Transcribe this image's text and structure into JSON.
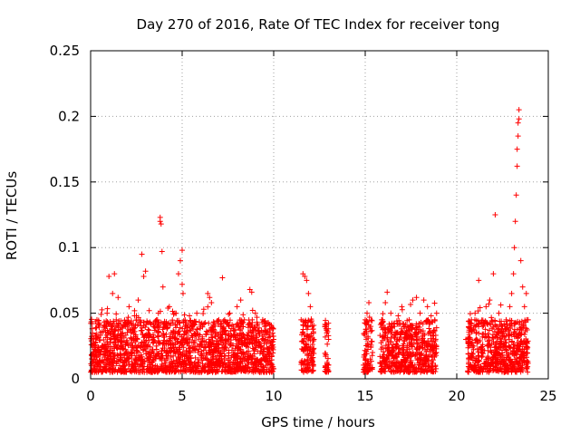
{
  "chart_data": {
    "type": "scatter",
    "title": "Day 270 of 2016, Rate Of TEC Index for receiver tong",
    "xlabel": "GPS time / hours",
    "ylabel": "ROTI / TECUs",
    "xlim": [
      0,
      25
    ],
    "ylim": [
      0,
      0.25
    ],
    "xticks": [
      0,
      5,
      10,
      15,
      20,
      25
    ],
    "xtick_labels": [
      "0",
      "5",
      "10",
      "15",
      "20",
      "25"
    ],
    "yticks": [
      0,
      0.05,
      0.1,
      0.15,
      0.2,
      0.25
    ],
    "ytick_labels": [
      "0",
      "0.05",
      "0.1",
      "0.15",
      "0.2",
      "0.25"
    ],
    "grid": true,
    "marker": "+",
    "marker_color": "#ff0000",
    "series": [
      {
        "name": "ROTI",
        "points": [
          [
            0.1,
            0.035
          ],
          [
            0.3,
            0.02
          ],
          [
            0.5,
            0.042
          ],
          [
            0.7,
            0.025
          ],
          [
            0.9,
            0.05
          ],
          [
            1.0,
            0.078
          ],
          [
            1.1,
            0.03
          ],
          [
            1.2,
            0.065
          ],
          [
            1.3,
            0.08
          ],
          [
            1.4,
            0.045
          ],
          [
            1.5,
            0.062
          ],
          [
            1.7,
            0.028
          ],
          [
            1.9,
            0.04
          ],
          [
            2.1,
            0.055
          ],
          [
            2.3,
            0.025
          ],
          [
            2.5,
            0.048
          ],
          [
            2.6,
            0.06
          ],
          [
            2.8,
            0.095
          ],
          [
            2.9,
            0.078
          ],
          [
            3.0,
            0.082
          ],
          [
            3.2,
            0.052
          ],
          [
            3.4,
            0.03
          ],
          [
            3.6,
            0.045
          ],
          [
            3.7,
            0.05
          ],
          [
            3.8,
            0.12
          ],
          [
            3.8,
            0.123
          ],
          [
            3.85,
            0.118
          ],
          [
            3.9,
            0.097
          ],
          [
            3.95,
            0.07
          ],
          [
            4.1,
            0.04
          ],
          [
            4.3,
            0.055
          ],
          [
            4.5,
            0.035
          ],
          [
            4.6,
            0.05
          ],
          [
            4.8,
            0.08
          ],
          [
            4.9,
            0.09
          ],
          [
            5.0,
            0.098
          ],
          [
            5.0,
            0.072
          ],
          [
            5.05,
            0.065
          ],
          [
            5.2,
            0.03
          ],
          [
            5.4,
            0.048
          ],
          [
            5.6,
            0.038
          ],
          [
            5.8,
            0.05
          ],
          [
            6.0,
            0.025
          ],
          [
            6.2,
            0.042
          ],
          [
            6.4,
            0.065
          ],
          [
            6.5,
            0.062
          ],
          [
            6.6,
            0.058
          ],
          [
            6.8,
            0.035
          ],
          [
            7.0,
            0.045
          ],
          [
            7.2,
            0.077
          ],
          [
            7.4,
            0.03
          ],
          [
            7.6,
            0.05
          ],
          [
            7.8,
            0.04
          ],
          [
            8.0,
            0.055
          ],
          [
            8.2,
            0.06
          ],
          [
            8.4,
            0.045
          ],
          [
            8.6,
            0.03
          ],
          [
            8.7,
            0.068
          ],
          [
            8.8,
            0.066
          ],
          [
            9.0,
            0.05
          ],
          [
            9.2,
            0.035
          ],
          [
            9.4,
            0.045
          ],
          [
            9.6,
            0.028
          ],
          [
            9.8,
            0.032
          ],
          [
            9.9,
            0.025
          ],
          [
            10.0,
            0.03
          ],
          [
            11.5,
            0.045
          ],
          [
            11.6,
            0.08
          ],
          [
            11.7,
            0.078
          ],
          [
            11.8,
            0.075
          ],
          [
            11.9,
            0.065
          ],
          [
            12.0,
            0.055
          ],
          [
            12.1,
            0.04
          ],
          [
            12.2,
            0.03
          ],
          [
            12.8,
            0.04
          ],
          [
            12.9,
            0.035
          ],
          [
            13.0,
            0.03
          ],
          [
            15.0,
            0.045
          ],
          [
            15.1,
            0.05
          ],
          [
            15.2,
            0.058
          ],
          [
            15.3,
            0.04
          ],
          [
            15.4,
            0.02
          ],
          [
            15.9,
            0.045
          ],
          [
            16.1,
            0.058
          ],
          [
            16.2,
            0.066
          ],
          [
            16.4,
            0.05
          ],
          [
            16.6,
            0.04
          ],
          [
            16.8,
            0.048
          ],
          [
            17.0,
            0.055
          ],
          [
            17.2,
            0.035
          ],
          [
            17.4,
            0.045
          ],
          [
            17.6,
            0.06
          ],
          [
            17.8,
            0.062
          ],
          [
            18.0,
            0.05
          ],
          [
            18.2,
            0.06
          ],
          [
            18.4,
            0.055
          ],
          [
            18.6,
            0.048
          ],
          [
            18.8,
            0.045
          ],
          [
            18.9,
            0.05
          ],
          [
            20.5,
            0.03
          ],
          [
            20.8,
            0.045
          ],
          [
            21.0,
            0.05
          ],
          [
            21.2,
            0.075
          ],
          [
            21.4,
            0.04
          ],
          [
            21.6,
            0.055
          ],
          [
            21.8,
            0.06
          ],
          [
            22.0,
            0.08
          ],
          [
            22.1,
            0.125
          ],
          [
            22.3,
            0.05
          ],
          [
            22.5,
            0.04
          ],
          [
            22.7,
            0.045
          ],
          [
            22.9,
            0.055
          ],
          [
            23.0,
            0.065
          ],
          [
            23.1,
            0.08
          ],
          [
            23.15,
            0.1
          ],
          [
            23.2,
            0.12
          ],
          [
            23.25,
            0.14
          ],
          [
            23.3,
            0.162
          ],
          [
            23.3,
            0.175
          ],
          [
            23.35,
            0.185
          ],
          [
            23.35,
            0.195
          ],
          [
            23.4,
            0.198
          ],
          [
            23.4,
            0.205
          ],
          [
            23.5,
            0.09
          ],
          [
            23.6,
            0.07
          ],
          [
            23.7,
            0.055
          ],
          [
            23.8,
            0.065
          ],
          [
            23.9,
            0.045
          ]
        ],
        "dense_band": {
          "description_ranges_hours": [
            [
              0,
              10
            ],
            [
              11.5,
              12.2
            ],
            [
              12.8,
              13.0
            ],
            [
              14.9,
              15.4
            ],
            [
              15.8,
              18.9
            ],
            [
              20.6,
              23.9
            ]
          ],
          "typical_min": 0.005,
          "typical_max": 0.045
        }
      }
    ]
  }
}
